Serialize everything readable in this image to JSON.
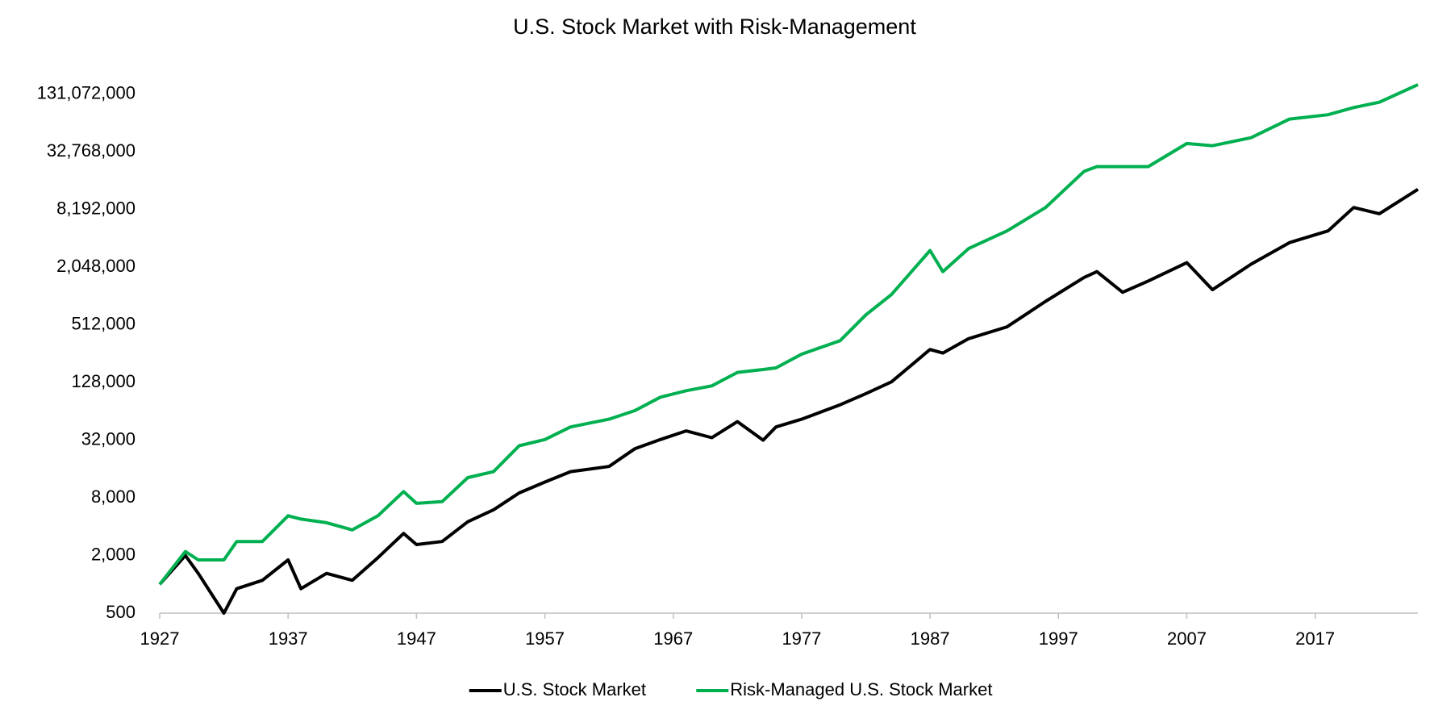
{
  "chart_data": {
    "type": "line",
    "title": "U.S. Stock Market with Risk-Management",
    "yscale": "log",
    "grid": false,
    "legend": "bottom",
    "xlim": [
      1927,
      2025
    ],
    "xticks": [
      1927,
      1937,
      1947,
      1957,
      1967,
      1977,
      1987,
      1997,
      2007,
      2017
    ],
    "ylim": [
      500,
      262144000
    ],
    "yticks": [
      500,
      {
        "value": 2000,
        "label": "2,000"
      },
      {
        "value": 8000,
        "label": "8,000"
      },
      {
        "value": 32000,
        "label": "32,000"
      },
      {
        "value": 128000,
        "label": "128,000"
      },
      {
        "value": 512000,
        "label": "512,000"
      },
      {
        "value": 2048000,
        "label": "2,048,000"
      },
      {
        "value": 8192000,
        "label": "8,192,000"
      },
      {
        "value": 32768000,
        "label": "32,768,000"
      },
      {
        "value": 131072000,
        "label": "131,072,000"
      }
    ],
    "x": [
      1927,
      1929,
      1930,
      1932,
      1933,
      1935,
      1937,
      1938,
      1940,
      1942,
      1944,
      1946,
      1947,
      1949,
      1951,
      1953,
      1955,
      1957,
      1959,
      1962,
      1964,
      1966,
      1968,
      1970,
      1972,
      1974,
      1975,
      1977,
      1980,
      1982,
      1984,
      1987,
      1988,
      1990,
      1993,
      1996,
      1999,
      2000,
      2002,
      2004,
      2007,
      2009,
      2012,
      2015,
      2018,
      2020,
      2022,
      2025
    ],
    "series": [
      {
        "name": "U.S. Stock Market",
        "color": "#000000",
        "values": [
          1000,
          2000,
          1300,
          500,
          900,
          1100,
          1800,
          900,
          1300,
          1100,
          1900,
          3400,
          2600,
          2800,
          4500,
          6000,
          9000,
          11700,
          15000,
          17000,
          26000,
          32500,
          40000,
          34000,
          50000,
          32000,
          44000,
          53000,
          75000,
          98000,
          130000,
          283000,
          260000,
          367000,
          488000,
          900000,
          1600000,
          1840000,
          1120000,
          1470000,
          2280000,
          1190000,
          2200000,
          3700000,
          4900000,
          8600000,
          7400000,
          13300000
        ]
      },
      {
        "name": "Risk-Managed U.S. Stock Market",
        "color": "#00b050",
        "values": [
          1000,
          2200,
          1800,
          1800,
          2800,
          2800,
          5200,
          4800,
          4400,
          3700,
          5200,
          9300,
          7000,
          7300,
          13000,
          15000,
          28000,
          32500,
          44000,
          53000,
          65000,
          90000,
          105000,
          118000,
          163000,
          175000,
          182000,
          253000,
          350000,
          650000,
          1060000,
          3060000,
          1840000,
          3200000,
          4900000,
          8600000,
          20500000,
          23000000,
          23000000,
          23000000,
          40000000,
          38000000,
          46000000,
          72000000,
          80000000,
          95000000,
          108000000,
          165000000
        ]
      }
    ]
  }
}
